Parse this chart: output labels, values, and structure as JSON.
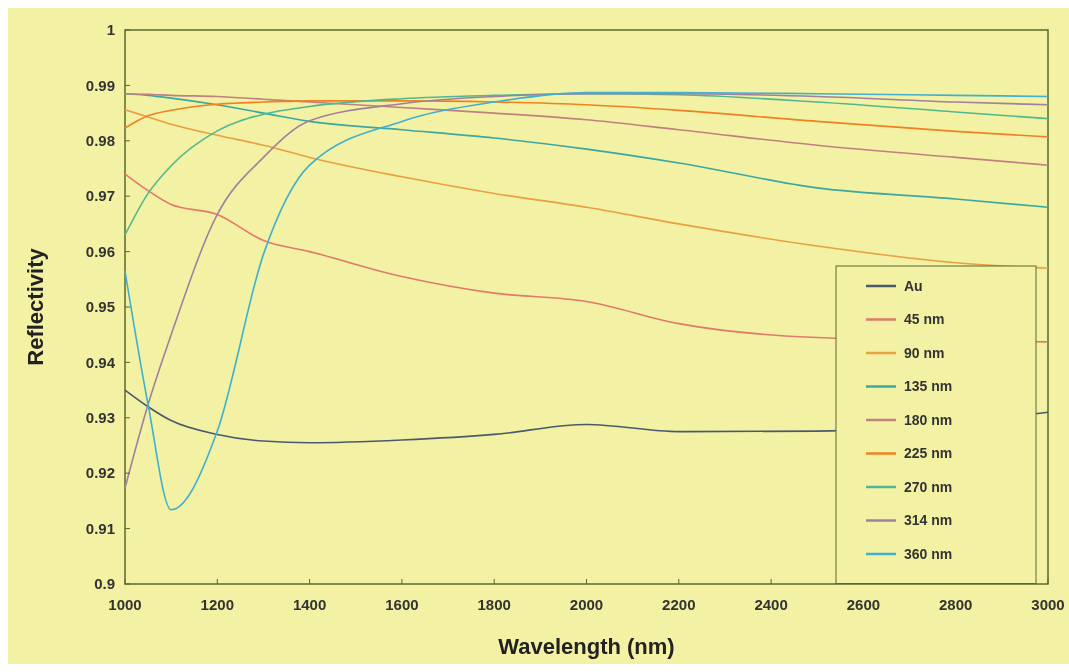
{
  "chart_data": {
    "type": "line",
    "xlabel": "Wavelength (nm)",
    "ylabel": "Reflectivity",
    "x": [
      1000,
      1050,
      1100,
      1200,
      1300,
      1400,
      1600,
      1800,
      2000,
      2200,
      2500,
      2800,
      3000
    ],
    "xlim": [
      1000,
      3000
    ],
    "xticks": [
      1000,
      1200,
      1400,
      1600,
      1800,
      2000,
      2200,
      2400,
      2600,
      2800,
      3000
    ],
    "ylim": [
      0.9,
      1
    ],
    "yticks": [
      0.9,
      0.91,
      0.92,
      0.93,
      0.94,
      0.95,
      0.96,
      0.97,
      0.98,
      0.99,
      1
    ],
    "grid": false,
    "legend": "bottom right",
    "series": [
      {
        "name": "Au",
        "color": "#4a5a6e",
        "values": [
          0.935,
          0.932,
          0.9295,
          0.927,
          0.9258,
          0.9255,
          0.926,
          0.927,
          0.9288,
          0.9275,
          0.9276,
          null,
          0.931
        ]
      },
      {
        "name": "45 nm",
        "color": "#e07a6a",
        "values": [
          0.974,
          0.971,
          0.9685,
          0.9667,
          0.962,
          0.96,
          0.9555,
          0.9525,
          0.951,
          0.947,
          0.9445,
          null,
          0.9437
        ]
      },
      {
        "name": "90 nm",
        "color": "#e8a040",
        "values": [
          0.9856,
          0.9843,
          0.983,
          0.981,
          0.9792,
          0.977,
          0.9735,
          0.9705,
          0.968,
          0.965,
          0.961,
          0.958,
          0.957
        ]
      },
      {
        "name": "135 nm",
        "color": "#3aa8a0",
        "values": [
          0.9885,
          0.9882,
          0.9877,
          0.9865,
          0.985,
          0.9835,
          0.982,
          0.9805,
          0.9785,
          0.976,
          0.9715,
          0.9695,
          0.968
        ]
      },
      {
        "name": "180 nm",
        "color": "#c08080",
        "values": [
          0.9885,
          0.9884,
          0.9882,
          0.988,
          0.9875,
          0.987,
          0.986,
          0.985,
          0.9838,
          0.982,
          0.9792,
          0.977,
          0.9756
        ]
      },
      {
        "name": "225 nm",
        "color": "#f08020",
        "values": [
          0.9823,
          0.9845,
          0.9855,
          0.9866,
          0.987,
          0.9872,
          0.9872,
          0.987,
          0.9865,
          0.9855,
          0.9835,
          0.9817,
          0.9807
        ]
      },
      {
        "name": "270 nm",
        "color": "#50b890",
        "values": [
          0.963,
          0.9705,
          0.9755,
          0.9818,
          0.9848,
          0.9862,
          0.9876,
          0.9882,
          0.9885,
          0.9883,
          0.987,
          0.9852,
          0.984
        ]
      },
      {
        "name": "314 nm",
        "color": "#a080a0",
        "values": [
          0.9173,
          0.9324,
          0.945,
          0.9667,
          0.977,
          0.9836,
          0.9867,
          0.988,
          0.9885,
          0.9885,
          0.988,
          0.987,
          0.9865
        ]
      },
      {
        "name": "360 nm",
        "color": "#40b0d0",
        "values": [
          0.9565,
          0.9324,
          0.9134,
          0.9276,
          0.9595,
          0.9756,
          0.9835,
          0.987,
          0.9887,
          0.9887,
          0.9885,
          0.9882,
          0.988
        ]
      }
    ]
  }
}
